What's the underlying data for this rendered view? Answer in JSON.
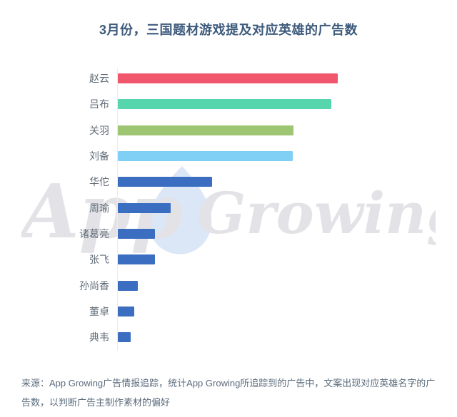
{
  "page": {
    "background": "#ffffff"
  },
  "chart_data": {
    "type": "bar",
    "orientation": "horizontal",
    "title": "3月份，三国题材游戏提及对应英雄的广告数",
    "categories": [
      "赵云",
      "吕布",
      "关羽",
      "刘备",
      "华佗",
      "周瑜",
      "诸葛亮",
      "张飞",
      "孙尚香",
      "董卓",
      "典韦"
    ],
    "values_relative": [
      100,
      97,
      80,
      79.5,
      43,
      24,
      17,
      17,
      9,
      7.5,
      6
    ],
    "value_range_estimated": [
      0,
      100
    ],
    "value_axis_labeled": false,
    "grid": false,
    "legend_position": "none",
    "bar_colors": [
      "#f0566c",
      "#57d6ae",
      "#9dc572",
      "#80cff4",
      "#3b6ec1",
      "#3b6ec1",
      "#3b6ec1",
      "#3b6ec1",
      "#3b6ec1",
      "#3b6ec1",
      "#3b6ec1"
    ],
    "title_color": "#3d5a7c",
    "label_color": "#5f6b77",
    "axis_line_color": "#ececef"
  },
  "watermark": {
    "text_app": "App",
    "text_growing": "Growing",
    "text_color": "#e3e3e7",
    "logo_name": "app-growing-drop-logo",
    "logo_color": "#dbe7f6"
  },
  "footer": {
    "source_text": "来源：App Growing广告情报追踪，统计App Growing所追踪到的广告中，文案出现对应英雄名字的广告数，以判断广告主制作素材的偏好",
    "text_color": "#5b6b7c"
  }
}
